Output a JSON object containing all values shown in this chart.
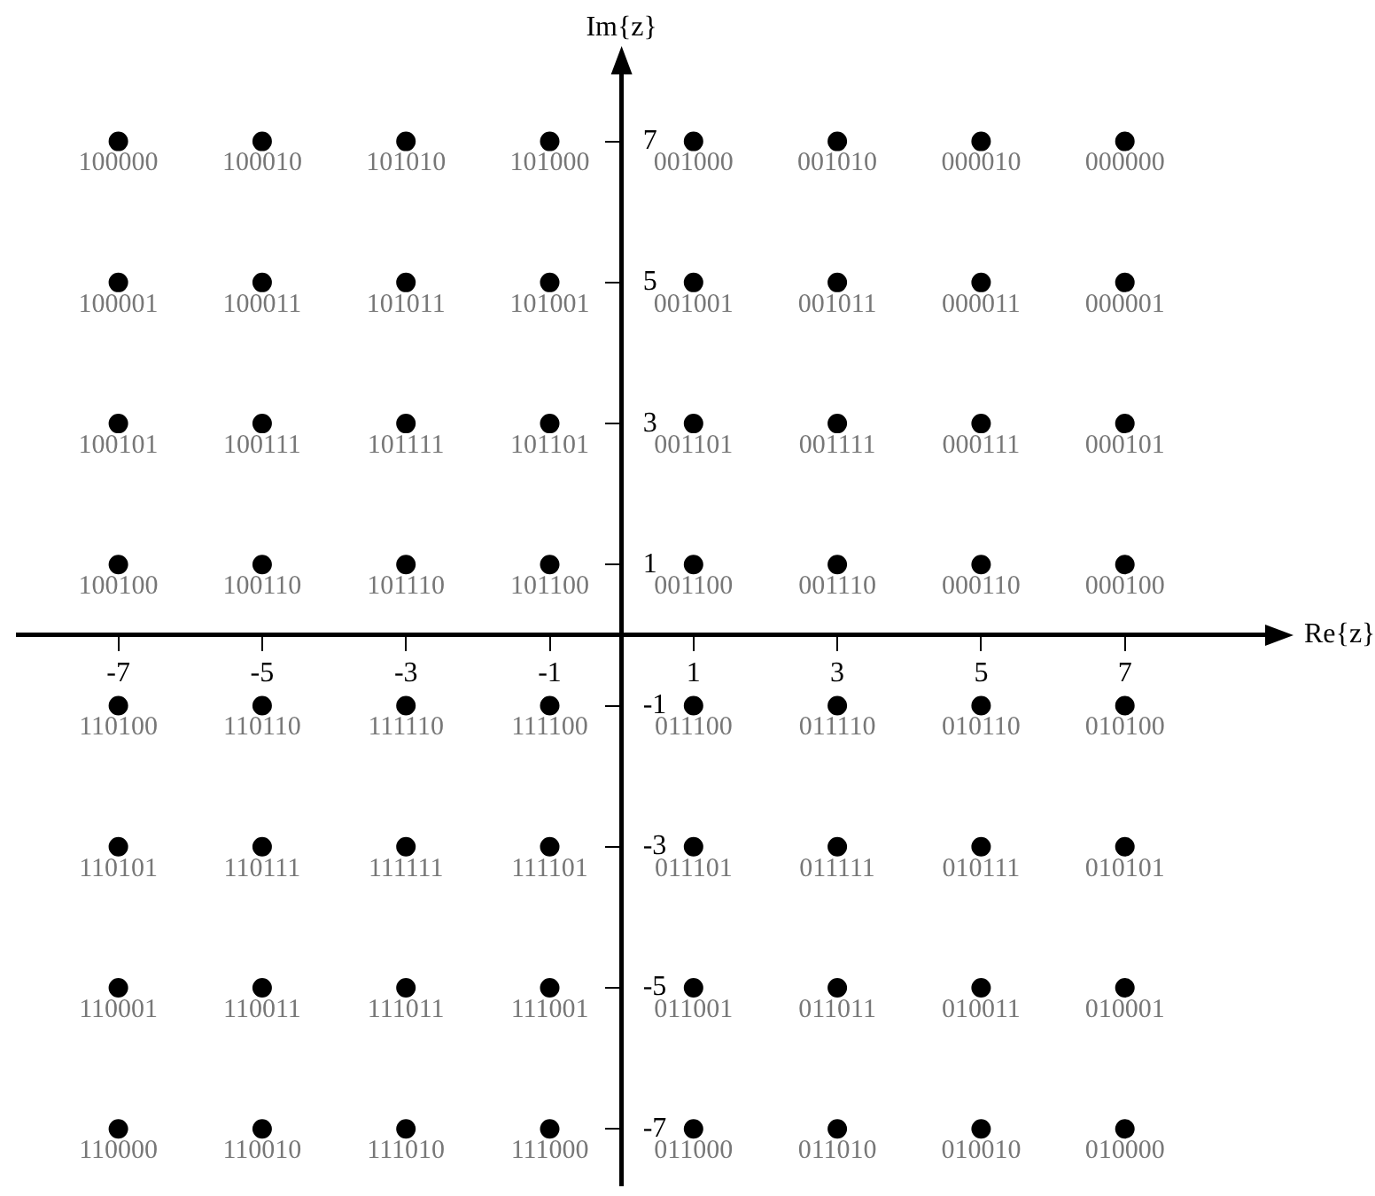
{
  "chart_data": {
    "type": "scatter",
    "xlabel": "Re{z}",
    "ylabel": "Im{z}",
    "marker": "circle",
    "color": "#000000",
    "xlim": [
      -8.4,
      9
    ],
    "ylim": [
      -7.8,
      8
    ],
    "xticks": [
      -7,
      -5,
      -3,
      -1,
      1,
      3,
      5,
      7
    ],
    "yticks": [
      -7,
      -5,
      -3,
      -1,
      1,
      3,
      5,
      7
    ],
    "x": [
      -7,
      -5,
      -3,
      -1,
      1,
      3,
      5,
      7,
      -7,
      -5,
      -3,
      -1,
      1,
      3,
      5,
      7,
      -7,
      -5,
      -3,
      -1,
      1,
      3,
      5,
      7,
      -7,
      -5,
      -3,
      -1,
      1,
      3,
      5,
      7,
      -7,
      -5,
      -3,
      -1,
      1,
      3,
      5,
      7,
      -7,
      -5,
      -3,
      -1,
      1,
      3,
      5,
      7,
      -7,
      -5,
      -3,
      -1,
      1,
      3,
      5,
      7,
      -7,
      -5,
      -3,
      -1,
      1,
      3,
      5,
      7
    ],
    "values": [
      7,
      7,
      7,
      7,
      7,
      7,
      7,
      7,
      5,
      5,
      5,
      5,
      5,
      5,
      5,
      5,
      3,
      3,
      3,
      3,
      3,
      3,
      3,
      3,
      1,
      1,
      1,
      1,
      1,
      1,
      1,
      1,
      -1,
      -1,
      -1,
      -1,
      -1,
      -1,
      -1,
      -1,
      -3,
      -3,
      -3,
      -3,
      -3,
      -3,
      -3,
      -3,
      -5,
      -5,
      -5,
      -5,
      -5,
      -5,
      -5,
      -5,
      -7,
      -7,
      -7,
      -7,
      -7,
      -7,
      -7,
      -7
    ],
    "annotations": [
      {
        "text": "100000",
        "x": -7,
        "y": 7
      },
      {
        "text": "100010",
        "x": -5,
        "y": 7
      },
      {
        "text": "101010",
        "x": -3,
        "y": 7
      },
      {
        "text": "101000",
        "x": -1,
        "y": 7
      },
      {
        "text": "001000",
        "x": 1,
        "y": 7
      },
      {
        "text": "001010",
        "x": 3,
        "y": 7
      },
      {
        "text": "000010",
        "x": 5,
        "y": 7
      },
      {
        "text": "000000",
        "x": 7,
        "y": 7
      },
      {
        "text": "100001",
        "x": -7,
        "y": 5
      },
      {
        "text": "100011",
        "x": -5,
        "y": 5
      },
      {
        "text": "101011",
        "x": -3,
        "y": 5
      },
      {
        "text": "101001",
        "x": -1,
        "y": 5
      },
      {
        "text": "001001",
        "x": 1,
        "y": 5
      },
      {
        "text": "001011",
        "x": 3,
        "y": 5
      },
      {
        "text": "000011",
        "x": 5,
        "y": 5
      },
      {
        "text": "000001",
        "x": 7,
        "y": 5
      },
      {
        "text": "100101",
        "x": -7,
        "y": 3
      },
      {
        "text": "100111",
        "x": -5,
        "y": 3
      },
      {
        "text": "101111",
        "x": -3,
        "y": 3
      },
      {
        "text": "101101",
        "x": -1,
        "y": 3
      },
      {
        "text": "001101",
        "x": 1,
        "y": 3
      },
      {
        "text": "001111",
        "x": 3,
        "y": 3
      },
      {
        "text": "000111",
        "x": 5,
        "y": 3
      },
      {
        "text": "000101",
        "x": 7,
        "y": 3
      },
      {
        "text": "100100",
        "x": -7,
        "y": 1
      },
      {
        "text": "100110",
        "x": -5,
        "y": 1
      },
      {
        "text": "101110",
        "x": -3,
        "y": 1
      },
      {
        "text": "101100",
        "x": -1,
        "y": 1
      },
      {
        "text": "001100",
        "x": 1,
        "y": 1
      },
      {
        "text": "001110",
        "x": 3,
        "y": 1
      },
      {
        "text": "000110",
        "x": 5,
        "y": 1
      },
      {
        "text": "000100",
        "x": 7,
        "y": 1
      },
      {
        "text": "110100",
        "x": -7,
        "y": -1
      },
      {
        "text": "110110",
        "x": -5,
        "y": -1
      },
      {
        "text": "111110",
        "x": -3,
        "y": -1
      },
      {
        "text": "111100",
        "x": -1,
        "y": -1
      },
      {
        "text": "011100",
        "x": 1,
        "y": -1
      },
      {
        "text": "011110",
        "x": 3,
        "y": -1
      },
      {
        "text": "010110",
        "x": 5,
        "y": -1
      },
      {
        "text": "010100",
        "x": 7,
        "y": -1
      },
      {
        "text": "110101",
        "x": -7,
        "y": -3
      },
      {
        "text": "110111",
        "x": -5,
        "y": -3
      },
      {
        "text": "111111",
        "x": -3,
        "y": -3
      },
      {
        "text": "111101",
        "x": -1,
        "y": -3
      },
      {
        "text": "011101",
        "x": 1,
        "y": -3
      },
      {
        "text": "011111",
        "x": 3,
        "y": -3
      },
      {
        "text": "010111",
        "x": 5,
        "y": -3
      },
      {
        "text": "010101",
        "x": 7,
        "y": -3
      },
      {
        "text": "110001",
        "x": -7,
        "y": -5
      },
      {
        "text": "110011",
        "x": -5,
        "y": -5
      },
      {
        "text": "111011",
        "x": -3,
        "y": -5
      },
      {
        "text": "111001",
        "x": -1,
        "y": -5
      },
      {
        "text": "011001",
        "x": 1,
        "y": -5
      },
      {
        "text": "011011",
        "x": 3,
        "y": -5
      },
      {
        "text": "010011",
        "x": 5,
        "y": -5
      },
      {
        "text": "010001",
        "x": 7,
        "y": -5
      },
      {
        "text": "110000",
        "x": -7,
        "y": -7
      },
      {
        "text": "110010",
        "x": -5,
        "y": -7
      },
      {
        "text": "111010",
        "x": -3,
        "y": -7
      },
      {
        "text": "111000",
        "x": -1,
        "y": -7
      },
      {
        "text": "011000",
        "x": 1,
        "y": -7
      },
      {
        "text": "011010",
        "x": 3,
        "y": -7
      },
      {
        "text": "010010",
        "x": 5,
        "y": -7
      },
      {
        "text": "010000",
        "x": 7,
        "y": -7
      }
    ]
  }
}
